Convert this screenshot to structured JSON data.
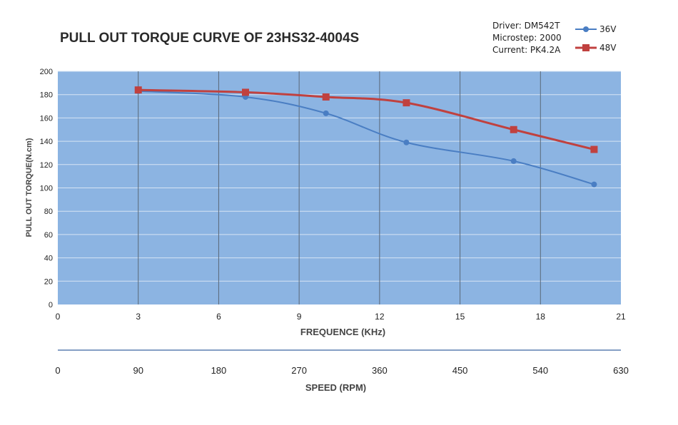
{
  "chart_data": {
    "type": "line",
    "title": "PULL OUT TORQUE CURVE OF 23HS32-4004S",
    "info_lines": [
      "Driver: DM542T",
      "Microstep: 2000",
      "Current: PK4.2A"
    ],
    "xlabel": "FREQUENCE (KHz)",
    "ylabel": "PULL OUT TORQUE(N.cm)",
    "xlim": [
      0,
      21
    ],
    "ylim": [
      0,
      200
    ],
    "x_ticks": [
      "0",
      "3",
      "6",
      "9",
      "12",
      "15",
      "18",
      "21"
    ],
    "y_ticks": [
      "0",
      "20",
      "40",
      "60",
      "80",
      "100",
      "120",
      "140",
      "160",
      "180",
      "200"
    ],
    "secondary_axis": {
      "label": "SPEED (RPM)",
      "ticks": [
        "0",
        "90",
        "180",
        "270",
        "360",
        "450",
        "540",
        "630"
      ]
    },
    "grid": true,
    "legend_position": "top-right",
    "series": [
      {
        "name": "36V",
        "color": "#4a7ec3",
        "marker": "circle",
        "x": [
          3,
          7,
          10,
          13,
          17,
          20
        ],
        "y": [
          183,
          178,
          164,
          139,
          123,
          103
        ]
      },
      {
        "name": "48V",
        "color": "#c0413f",
        "marker": "square",
        "x": [
          3,
          7,
          10,
          13,
          17,
          20
        ],
        "y": [
          184,
          182,
          178,
          173,
          150,
          133
        ]
      }
    ],
    "colors": {
      "plot_bg": "#8cb4e2",
      "grid_vertical": "#5a6878",
      "grid_horizontal": "#d6e4f4",
      "secondary_axis_line": "#5b7fb0"
    }
  }
}
